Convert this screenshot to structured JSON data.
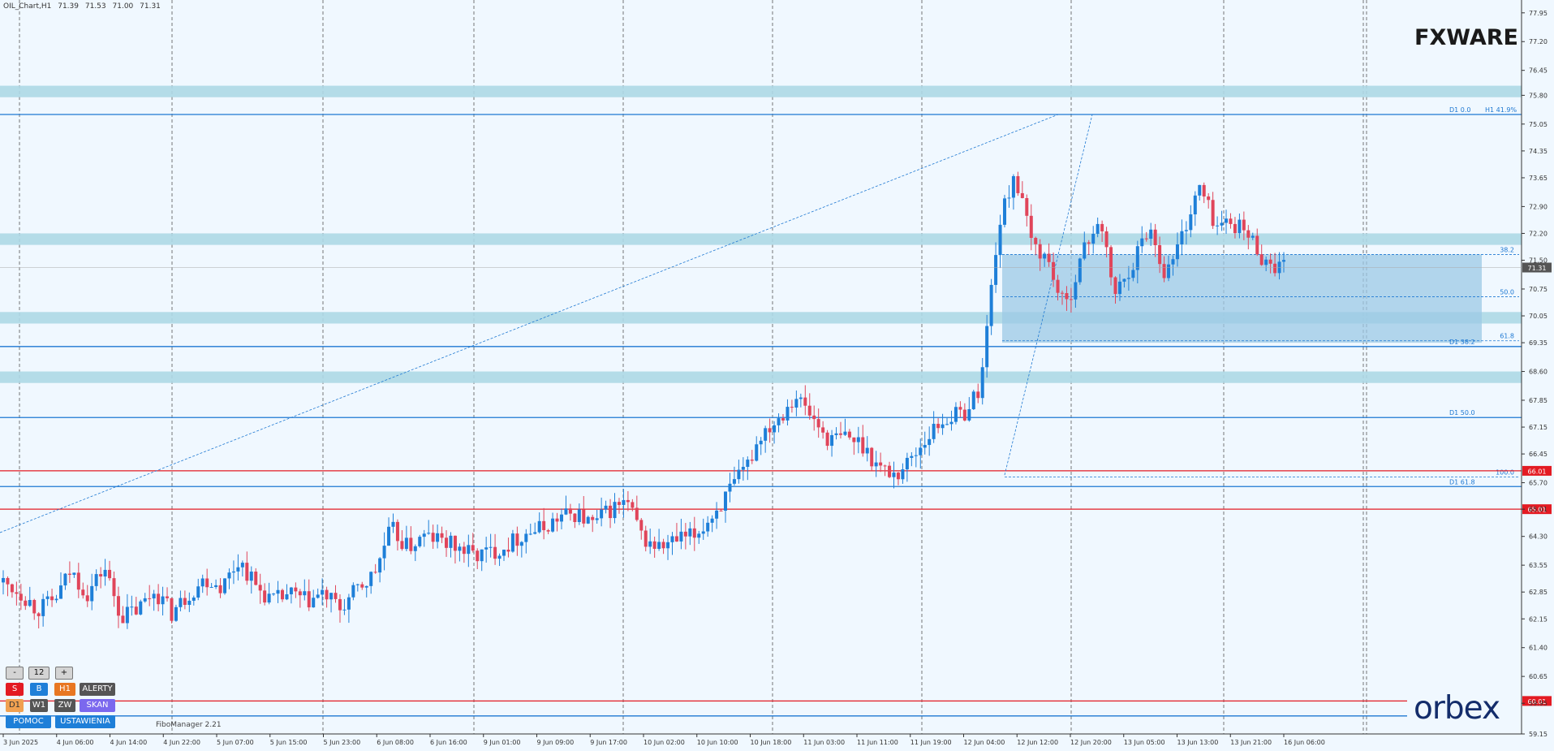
{
  "header": {
    "symbol": "OIL_Chart,H1",
    "ohlc": [
      "71.39",
      "71.53",
      "71.00",
      "71.31"
    ]
  },
  "brand": {
    "top": "FXWARE",
    "bottom": "orbex"
  },
  "colors": {
    "background": "#f0f8ff",
    "zone": "#add8e6",
    "fib_zone": "#9ccae6",
    "level_line": "#1e78d2",
    "red_line": "#e31b23",
    "bull": "#1e7fd8",
    "bear": "#e0455a",
    "grid": "#555555"
  },
  "chart_data": {
    "type": "candlestick",
    "symbol": "OIL",
    "timeframe": "H1",
    "ylim": [
      59.15,
      78.2
    ],
    "y_ticks": [
      "77.95",
      "77.20",
      "76.45",
      "75.80",
      "75.05",
      "74.35",
      "73.65",
      "72.90",
      "72.20",
      "71.50",
      "70.75",
      "70.05",
      "69.35",
      "68.60",
      "67.85",
      "67.15",
      "66.45",
      "65.70",
      "65.01",
      "64.30",
      "63.55",
      "62.85",
      "62.15",
      "61.40",
      "60.65",
      "59.95",
      "59.15"
    ],
    "x_labels": [
      "3 Jun 2025",
      "4 Jun 06:00",
      "4 Jun 14:00",
      "4 Jun 22:00",
      "5 Jun 07:00",
      "5 Jun 15:00",
      "5 Jun 23:00",
      "6 Jun 08:00",
      "6 Jun 16:00",
      "9 Jun 01:00",
      "9 Jun 09:00",
      "9 Jun 17:00",
      "10 Jun 02:00",
      "10 Jun 10:00",
      "10 Jun 18:00",
      "11 Jun 03:00",
      "11 Jun 11:00",
      "11 Jun 19:00",
      "12 Jun 04:00",
      "12 Jun 12:00",
      "12 Jun 20:00",
      "13 Jun 05:00",
      "13 Jun 13:00",
      "13 Jun 21:00",
      "16 Jun 06:00"
    ],
    "price_path": [
      63.1,
      62.85,
      62.4,
      62.6,
      63.4,
      62.8,
      63.5,
      62.2,
      62.4,
      62.9,
      62.3,
      62.8,
      63.2,
      63.0,
      63.7,
      63.0,
      62.6,
      62.8,
      62.6,
      62.8,
      62.4,
      62.9,
      63.3,
      64.5,
      64.0,
      64.3,
      64.2,
      64.0,
      63.8,
      63.9,
      64.1,
      64.4,
      64.5,
      64.8,
      64.9,
      64.6,
      65.0,
      65.2,
      64.2,
      64.0,
      64.2,
      64.3,
      64.8,
      65.4,
      66.0,
      67.0,
      67.4,
      68.0,
      67.4,
      66.8,
      66.9,
      66.7,
      66.1,
      65.9,
      66.4,
      67.0,
      67.4,
      67.5,
      68.2,
      72.2,
      73.8,
      72.0,
      71.5,
      70.2,
      71.6,
      72.6,
      70.6,
      71.4,
      72.4,
      71.1,
      72.2,
      73.4,
      72.4,
      72.5,
      72.1,
      71.4,
      71.31
    ],
    "last_price": "71.31",
    "zones": [
      {
        "from": 75.75,
        "to": 76.05
      },
      {
        "from": 71.9,
        "to": 72.2
      },
      {
        "from": 69.85,
        "to": 70.15
      },
      {
        "from": 68.3,
        "to": 68.6
      }
    ],
    "levels": [
      {
        "price": 75.3,
        "color": "blue",
        "label": "D1 0.0",
        "label2": "H1 41.9%"
      },
      {
        "price": 69.25,
        "color": "blue",
        "label": "D1 38.2"
      },
      {
        "price": 67.4,
        "color": "blue",
        "label": "D1 50.0"
      },
      {
        "price": 65.6,
        "color": "blue",
        "label": "D1 61.8"
      },
      {
        "price": 66.01,
        "color": "red",
        "tag": "66.01"
      },
      {
        "price": 65.01,
        "color": "red",
        "tag": "65.01"
      },
      {
        "price": 60.01,
        "color": "red",
        "tag": "60.01"
      },
      {
        "price": 59.62,
        "color": "blue"
      }
    ],
    "fib_box": {
      "from": 69.35,
      "to": 71.65,
      "time_from": "12 Jun 12:00"
    },
    "fib_levels": [
      {
        "price": 71.65,
        "label": "38.2"
      },
      {
        "price": 70.55,
        "label": "50.0"
      },
      {
        "price": 69.4,
        "label": "61.8"
      },
      {
        "price": 65.85,
        "label": "100.0"
      }
    ]
  },
  "controls": {
    "row1": {
      "minus": "-",
      "value": "12",
      "plus": "+"
    },
    "row2": [
      "S",
      "B",
      "H1",
      "ALERTY"
    ],
    "row3": [
      "D1",
      "W1",
      "ZW",
      "SKAN"
    ],
    "row4": [
      "POMOC",
      "USTAWIENIA"
    ]
  },
  "footer": {
    "fibomanager": "FiboManager 2.21"
  }
}
